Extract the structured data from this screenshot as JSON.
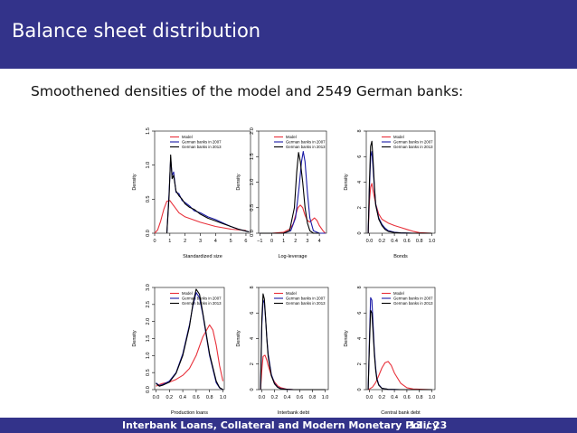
{
  "slide": {
    "title": "Balance sheet distribution",
    "subtitle": "Smoothened densities of the model and 2549 German banks:",
    "footer_title": "Interbank Loans, Collateral and Modern Monetary Policy",
    "page": "13 / 23",
    "colors": {
      "bar": "#33338a",
      "model": "#e8303a",
      "y2007": "#1a1aa6",
      "y2013": "#000000"
    }
  },
  "chart_data": [
    {
      "type": "line",
      "xlabel": "Standardized size",
      "ylabel": "Density",
      "xlim": [
        0,
        6.3
      ],
      "ylim": [
        0,
        1.5
      ],
      "xticks": [
        "0",
        "1",
        "2",
        "3",
        "4",
        "5",
        "6"
      ],
      "xtick_values": [
        0,
        1,
        2,
        3,
        4,
        5,
        6
      ],
      "yticks": [
        "0.0",
        "0.5",
        "1.0",
        "1.5"
      ],
      "ytick_values": [
        0,
        0.5,
        1.0,
        1.5
      ],
      "legend": [
        "Model",
        "German banks in 2007",
        "German banks in 2013"
      ],
      "series": [
        {
          "name": "Model",
          "color": "#e8303a",
          "x": [
            -0.1,
            0.2,
            0.4,
            0.6,
            0.8,
            1.0,
            1.2,
            1.4,
            1.6,
            1.8,
            2.0,
            2.5,
            3.0,
            4.0,
            5.0,
            6.0
          ],
          "y": [
            0.0,
            0.05,
            0.18,
            0.35,
            0.47,
            0.48,
            0.42,
            0.36,
            0.3,
            0.27,
            0.24,
            0.2,
            0.16,
            0.1,
            0.06,
            0.04
          ]
        },
        {
          "name": "German banks in 2007",
          "color": "#1a1aa6",
          "x": [
            0.8,
            0.95,
            1.05,
            1.15,
            1.25,
            1.4,
            1.6,
            1.8,
            2.0,
            2.3,
            2.6,
            3.0,
            3.5,
            4.0,
            4.5,
            5.0,
            5.5,
            6.0,
            6.2
          ],
          "y": [
            0.0,
            0.6,
            1.1,
            0.85,
            0.9,
            0.6,
            0.58,
            0.48,
            0.45,
            0.4,
            0.33,
            0.3,
            0.24,
            0.2,
            0.15,
            0.1,
            0.06,
            0.03,
            0.02
          ]
        },
        {
          "name": "German banks in 2013",
          "color": "#000000",
          "x": [
            0.8,
            0.95,
            1.05,
            1.15,
            1.25,
            1.4,
            1.6,
            1.8,
            2.0,
            2.3,
            2.6,
            3.0,
            3.5,
            4.0,
            4.5,
            5.0,
            5.5,
            6.0,
            6.2
          ],
          "y": [
            0.0,
            0.55,
            1.15,
            0.8,
            0.85,
            0.62,
            0.55,
            0.5,
            0.43,
            0.38,
            0.35,
            0.28,
            0.22,
            0.18,
            0.14,
            0.1,
            0.06,
            0.03,
            0.02
          ]
        }
      ]
    },
    {
      "type": "line",
      "xlabel": "Log-leverage",
      "ylabel": "Density",
      "xlim": [
        -1.1,
        4.6
      ],
      "ylim": [
        0,
        2.0
      ],
      "xticks": [
        "−1",
        "0",
        "1",
        "2",
        "3",
        "4"
      ],
      "xtick_values": [
        -1,
        0,
        1,
        2,
        3,
        4
      ],
      "yticks": [
        "0.0",
        "0.5",
        "1.0",
        "1.5",
        "2.0"
      ],
      "ytick_values": [
        0,
        0.5,
        1.0,
        1.5,
        2.0
      ],
      "legend": [
        "Model",
        "German banks in 2007",
        "German banks in 2013"
      ],
      "series": [
        {
          "name": "Model",
          "color": "#e8303a",
          "x": [
            -1.0,
            0.0,
            1.0,
            1.5,
            1.8,
            2.0,
            2.2,
            2.4,
            2.6,
            2.8,
            3.0,
            3.2,
            3.4,
            3.6,
            3.8,
            4.0,
            4.3,
            4.5
          ],
          "y": [
            0.0,
            0.0,
            0.02,
            0.08,
            0.18,
            0.35,
            0.5,
            0.55,
            0.5,
            0.35,
            0.25,
            0.22,
            0.26,
            0.3,
            0.25,
            0.15,
            0.05,
            0.0
          ]
        },
        {
          "name": "German banks in 2007",
          "color": "#1a1aa6",
          "x": [
            -1.0,
            1.0,
            1.6,
            2.0,
            2.3,
            2.5,
            2.65,
            2.8,
            3.0,
            3.2,
            3.5,
            4.0,
            4.5
          ],
          "y": [
            0.0,
            0.0,
            0.05,
            0.3,
            0.9,
            1.4,
            1.6,
            1.4,
            0.8,
            0.3,
            0.05,
            0.0,
            0.0
          ]
        },
        {
          "name": "German banks in 2013",
          "color": "#000000",
          "x": [
            -1.0,
            1.0,
            1.5,
            1.9,
            2.1,
            2.25,
            2.4,
            2.6,
            2.8,
            3.0,
            3.2,
            3.5,
            4.0
          ],
          "y": [
            0.0,
            0.0,
            0.05,
            0.5,
            1.2,
            1.58,
            1.4,
            1.0,
            0.5,
            0.2,
            0.05,
            0.0,
            0.0
          ]
        }
      ]
    },
    {
      "type": "line",
      "xlabel": "Bonds",
      "ylabel": "Density",
      "xlim": [
        -0.05,
        1.05
      ],
      "ylim": [
        0,
        8
      ],
      "xticks": [
        "0.0",
        "0.2",
        "0.4",
        "0.6",
        "0.8",
        "1.0"
      ],
      "xtick_values": [
        0,
        0.2,
        0.4,
        0.6,
        0.8,
        1.0
      ],
      "yticks": [
        "0",
        "2",
        "4",
        "6",
        "8"
      ],
      "ytick_values": [
        0,
        2,
        4,
        6,
        8
      ],
      "legend": [
        "Model",
        "German banks in 2007",
        "German banks in 2013"
      ],
      "series": [
        {
          "name": "Model",
          "color": "#e8303a",
          "x": [
            -0.02,
            0.0,
            0.02,
            0.04,
            0.06,
            0.1,
            0.15,
            0.2,
            0.3,
            0.4,
            0.5,
            0.6,
            0.7,
            0.8,
            1.0
          ],
          "y": [
            0.0,
            2.5,
            3.6,
            3.9,
            3.3,
            2.3,
            1.5,
            1.1,
            0.8,
            0.6,
            0.45,
            0.3,
            0.15,
            0.05,
            0.0
          ]
        },
        {
          "name": "German banks in 2007",
          "color": "#1a1aa6",
          "x": [
            -0.02,
            0.0,
            0.02,
            0.04,
            0.06,
            0.08,
            0.1,
            0.15,
            0.2,
            0.25,
            0.3,
            0.4,
            0.5,
            0.7,
            1.0
          ],
          "y": [
            0.0,
            3.5,
            6.0,
            6.4,
            5.0,
            3.5,
            2.3,
            1.2,
            0.7,
            0.4,
            0.2,
            0.08,
            0.03,
            0.0,
            0.0
          ]
        },
        {
          "name": "German banks in 2013",
          "color": "#000000",
          "x": [
            -0.02,
            0.0,
            0.02,
            0.04,
            0.06,
            0.08,
            0.1,
            0.15,
            0.2,
            0.25,
            0.3,
            0.4,
            0.5,
            0.7,
            1.0
          ],
          "y": [
            0.0,
            4.0,
            6.8,
            7.2,
            5.6,
            3.7,
            2.2,
            1.1,
            0.6,
            0.3,
            0.15,
            0.05,
            0.02,
            0.0,
            0.0
          ]
        }
      ]
    },
    {
      "type": "line",
      "xlabel": "Production loans",
      "ylabel": "Density",
      "xlim": [
        -0.02,
        1.02
      ],
      "ylim": [
        0,
        3.0
      ],
      "xticks": [
        "0.0",
        "0.2",
        "0.4",
        "0.6",
        "0.8",
        "1.0"
      ],
      "xtick_values": [
        0,
        0.2,
        0.4,
        0.6,
        0.8,
        1.0
      ],
      "yticks": [
        "0.0",
        "0.5",
        "1.0",
        "1.5",
        "2.0",
        "2.5",
        "3.0"
      ],
      "ytick_values": [
        0,
        0.5,
        1.0,
        1.5,
        2.0,
        2.5,
        3.0
      ],
      "legend": [
        "Model",
        "German banks in 2007",
        "German banks in 2013"
      ],
      "series": [
        {
          "name": "Model",
          "color": "#e8303a",
          "x": [
            0.0,
            0.05,
            0.1,
            0.2,
            0.3,
            0.4,
            0.5,
            0.6,
            0.7,
            0.8,
            0.85,
            0.9,
            0.95,
            1.0
          ],
          "y": [
            0.1,
            0.15,
            0.18,
            0.22,
            0.3,
            0.42,
            0.62,
            1.0,
            1.55,
            1.9,
            1.75,
            1.3,
            0.7,
            0.25
          ]
        },
        {
          "name": "German banks in 2007",
          "color": "#1a1aa6",
          "x": [
            0.0,
            0.05,
            0.1,
            0.2,
            0.3,
            0.4,
            0.5,
            0.55,
            0.6,
            0.65,
            0.7,
            0.8,
            0.9,
            0.95,
            1.0
          ],
          "y": [
            0.2,
            0.12,
            0.15,
            0.25,
            0.5,
            1.05,
            1.9,
            2.45,
            2.85,
            2.7,
            2.2,
            1.0,
            0.2,
            0.05,
            0.0
          ]
        },
        {
          "name": "German banks in 2013",
          "color": "#000000",
          "x": [
            0.0,
            0.05,
            0.1,
            0.2,
            0.3,
            0.4,
            0.5,
            0.55,
            0.6,
            0.65,
            0.7,
            0.8,
            0.9,
            0.95,
            1.0
          ],
          "y": [
            0.18,
            0.1,
            0.13,
            0.22,
            0.48,
            1.0,
            1.85,
            2.5,
            2.95,
            2.8,
            2.25,
            1.05,
            0.25,
            0.06,
            0.0
          ]
        }
      ]
    },
    {
      "type": "line",
      "xlabel": "Interbank debt",
      "ylabel": "Density",
      "xlim": [
        -0.05,
        1.05
      ],
      "ylim": [
        0,
        8
      ],
      "xticks": [
        "0.0",
        "0.2",
        "0.4",
        "0.6",
        "0.8",
        "1.0"
      ],
      "xtick_values": [
        0,
        0.2,
        0.4,
        0.6,
        0.8,
        1.0
      ],
      "yticks": [
        "0",
        "2",
        "4",
        "6",
        "8"
      ],
      "ytick_values": [
        0,
        2,
        4,
        6,
        8
      ],
      "legend": [
        "Model",
        "German banks in 2007",
        "German banks in 2013"
      ],
      "series": [
        {
          "name": "Model",
          "color": "#e8303a",
          "x": [
            -0.02,
            0.0,
            0.02,
            0.05,
            0.08,
            0.1,
            0.15,
            0.2,
            0.25,
            0.3,
            0.4,
            0.5,
            0.7,
            1.0
          ],
          "y": [
            0.0,
            1.5,
            2.6,
            2.7,
            2.3,
            1.9,
            1.1,
            0.6,
            0.3,
            0.15,
            0.03,
            0.0,
            0.0,
            0.0
          ]
        },
        {
          "name": "German banks in 2007",
          "color": "#1a1aa6",
          "x": [
            -0.02,
            0.0,
            0.02,
            0.04,
            0.06,
            0.08,
            0.1,
            0.15,
            0.2,
            0.25,
            0.3,
            0.4,
            0.5,
            0.7,
            1.0
          ],
          "y": [
            0.0,
            5.0,
            7.0,
            6.8,
            5.5,
            4.0,
            2.8,
            1.2,
            0.5,
            0.2,
            0.08,
            0.02,
            0.0,
            0.0,
            0.0
          ]
        },
        {
          "name": "German banks in 2013",
          "color": "#000000",
          "x": [
            -0.02,
            0.0,
            0.02,
            0.04,
            0.06,
            0.08,
            0.1,
            0.15,
            0.2,
            0.25,
            0.3,
            0.4,
            0.5,
            0.7,
            1.0
          ],
          "y": [
            0.0,
            5.5,
            7.5,
            7.1,
            5.6,
            3.9,
            2.6,
            1.1,
            0.45,
            0.18,
            0.06,
            0.02,
            0.0,
            0.0,
            0.0
          ]
        }
      ]
    },
    {
      "type": "line",
      "xlabel": "Central bank debt",
      "ylabel": "Density",
      "xlim": [
        -0.05,
        1.05
      ],
      "ylim": [
        0,
        8
      ],
      "xticks": [
        "0.0",
        "0.2",
        "0.4",
        "0.6",
        "0.8",
        "1.0"
      ],
      "xtick_values": [
        0,
        0.2,
        0.4,
        0.6,
        0.8,
        1.0
      ],
      "yticks": [
        "0",
        "2",
        "4",
        "6",
        "8"
      ],
      "ytick_values": [
        0,
        2,
        4,
        6,
        8
      ],
      "legend": [
        "Model",
        "German banks in 2007",
        "German banks in 2013"
      ],
      "series": [
        {
          "name": "Model",
          "color": "#e8303a",
          "x": [
            -0.02,
            0.0,
            0.05,
            0.1,
            0.15,
            0.2,
            0.25,
            0.3,
            0.35,
            0.4,
            0.5,
            0.6,
            0.7,
            1.0
          ],
          "y": [
            0.0,
            0.05,
            0.2,
            0.55,
            1.1,
            1.7,
            2.1,
            2.2,
            1.9,
            1.3,
            0.5,
            0.15,
            0.05,
            0.0
          ]
        },
        {
          "name": "German banks in 2007",
          "color": "#1a1aa6",
          "x": [
            -0.02,
            0.0,
            0.02,
            0.04,
            0.06,
            0.08,
            0.1,
            0.12,
            0.15,
            0.2,
            0.3,
            0.5,
            1.0
          ],
          "y": [
            0.0,
            4.0,
            7.2,
            7.0,
            5.0,
            3.0,
            1.7,
            0.9,
            0.4,
            0.1,
            0.02,
            0.0,
            0.0
          ]
        },
        {
          "name": "German banks in 2013",
          "color": "#000000",
          "x": [
            -0.02,
            0.0,
            0.02,
            0.04,
            0.06,
            0.08,
            0.1,
            0.12,
            0.15,
            0.2,
            0.3,
            0.5,
            1.0
          ],
          "y": [
            0.0,
            3.5,
            6.2,
            6.0,
            4.4,
            2.7,
            1.5,
            0.8,
            0.35,
            0.1,
            0.02,
            0.0,
            0.0
          ]
        }
      ]
    }
  ]
}
